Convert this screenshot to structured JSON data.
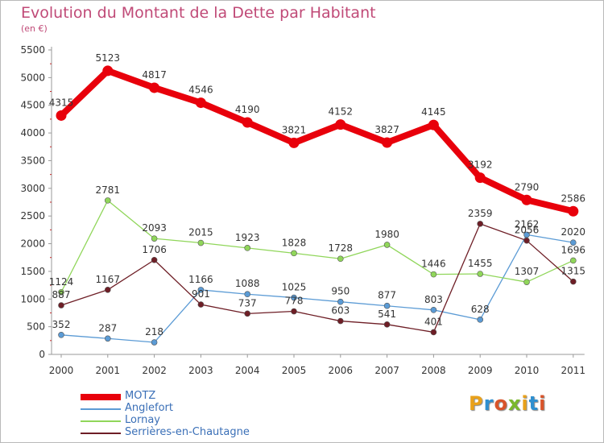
{
  "title": "Evolution du Montant de la Dette par Habitant",
  "subtitle": "(en €)",
  "logo": {
    "text": "Proxiti",
    "colors": [
      "#e9a11b",
      "#2e8fd0",
      "#d9542a",
      "#7ab82b",
      "#e9a11b",
      "#2e8fd0",
      "#d9542a"
    ]
  },
  "chart_data": {
    "type": "line",
    "x": [
      "2000",
      "2001",
      "2002",
      "2003",
      "2004",
      "2005",
      "2006",
      "2007",
      "2008",
      "2009",
      "2010",
      "2011"
    ],
    "ylim": [
      0,
      5500
    ],
    "yticks": [
      0,
      500,
      1000,
      1500,
      2000,
      2500,
      3000,
      3500,
      4000,
      4500,
      5000,
      5500
    ],
    "grid": false,
    "legend": "bottom-left",
    "series": [
      {
        "name": "MOTZ",
        "color": "#e8000b",
        "values": [
          4315,
          5123,
          4817,
          4546,
          4190,
          3821,
          4152,
          3827,
          4145,
          3192,
          2790,
          2586
        ]
      },
      {
        "name": "Anglefort",
        "color": "#5b9bd5",
        "values": [
          352,
          287,
          218,
          1166,
          1088,
          1025,
          950,
          877,
          803,
          628,
          2162,
          2020
        ]
      },
      {
        "name": "Lornay",
        "color": "#90d65a",
        "values": [
          1124,
          2781,
          2093,
          2015,
          1923,
          1828,
          1728,
          1980,
          1446,
          1455,
          1307,
          1696
        ]
      },
      {
        "name": "Serrières-en-Chautagne",
        "color": "#6e1e26",
        "values": [
          887,
          1167,
          1706,
          901,
          737,
          778,
          603,
          541,
          401,
          2359,
          2056,
          1315
        ]
      }
    ]
  }
}
